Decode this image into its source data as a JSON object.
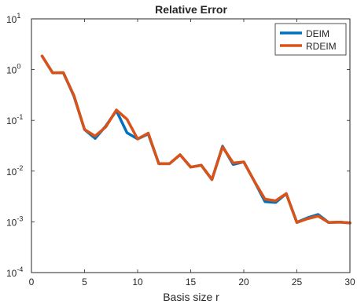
{
  "chart_data": {
    "type": "line",
    "title": "Relative Error",
    "xlabel": "Basis size r",
    "ylabel": "",
    "xlim": [
      0,
      30
    ],
    "ylim": [
      0.0001,
      10
    ],
    "yscale": "log",
    "xticks": [
      0,
      5,
      10,
      15,
      20,
      25,
      30
    ],
    "yticks": [
      {
        "value": 0.0001,
        "base": "10",
        "exp": "-4"
      },
      {
        "value": 0.001,
        "base": "10",
        "exp": "-3"
      },
      {
        "value": 0.01,
        "base": "10",
        "exp": "-2"
      },
      {
        "value": 0.1,
        "base": "10",
        "exp": "-1"
      },
      {
        "value": 1,
        "base": "10",
        "exp": "0"
      },
      {
        "value": 10,
        "base": "10",
        "exp": "1"
      }
    ],
    "grid": false,
    "legend_position": "top-right",
    "x": [
      1,
      2,
      3,
      4,
      5,
      6,
      7,
      8,
      9,
      10,
      11,
      12,
      13,
      14,
      15,
      16,
      17,
      18,
      19,
      20,
      21,
      22,
      23,
      24,
      25,
      26,
      27,
      28,
      29,
      30
    ],
    "series": [
      {
        "name": "DEIM",
        "color": "#0072BD",
        "values": [
          1.85,
          0.86,
          0.87,
          0.3,
          0.066,
          0.044,
          0.077,
          0.155,
          0.057,
          0.043,
          0.054,
          0.014,
          0.014,
          0.021,
          0.012,
          0.013,
          0.0068,
          0.031,
          0.0135,
          0.0152,
          0.0063,
          0.0025,
          0.0024,
          0.0036,
          0.00098,
          0.0012,
          0.0014,
          0.00097,
          0.00099,
          0.00095
        ]
      },
      {
        "name": "RDEIM",
        "color": "#D95319",
        "values": [
          1.85,
          0.86,
          0.87,
          0.31,
          0.066,
          0.049,
          0.074,
          0.16,
          0.105,
          0.043,
          0.056,
          0.014,
          0.014,
          0.021,
          0.012,
          0.013,
          0.0068,
          0.03,
          0.0145,
          0.0152,
          0.0063,
          0.0028,
          0.0026,
          0.0036,
          0.00097,
          0.00115,
          0.0013,
          0.00097,
          0.00099,
          0.00095
        ]
      }
    ]
  }
}
